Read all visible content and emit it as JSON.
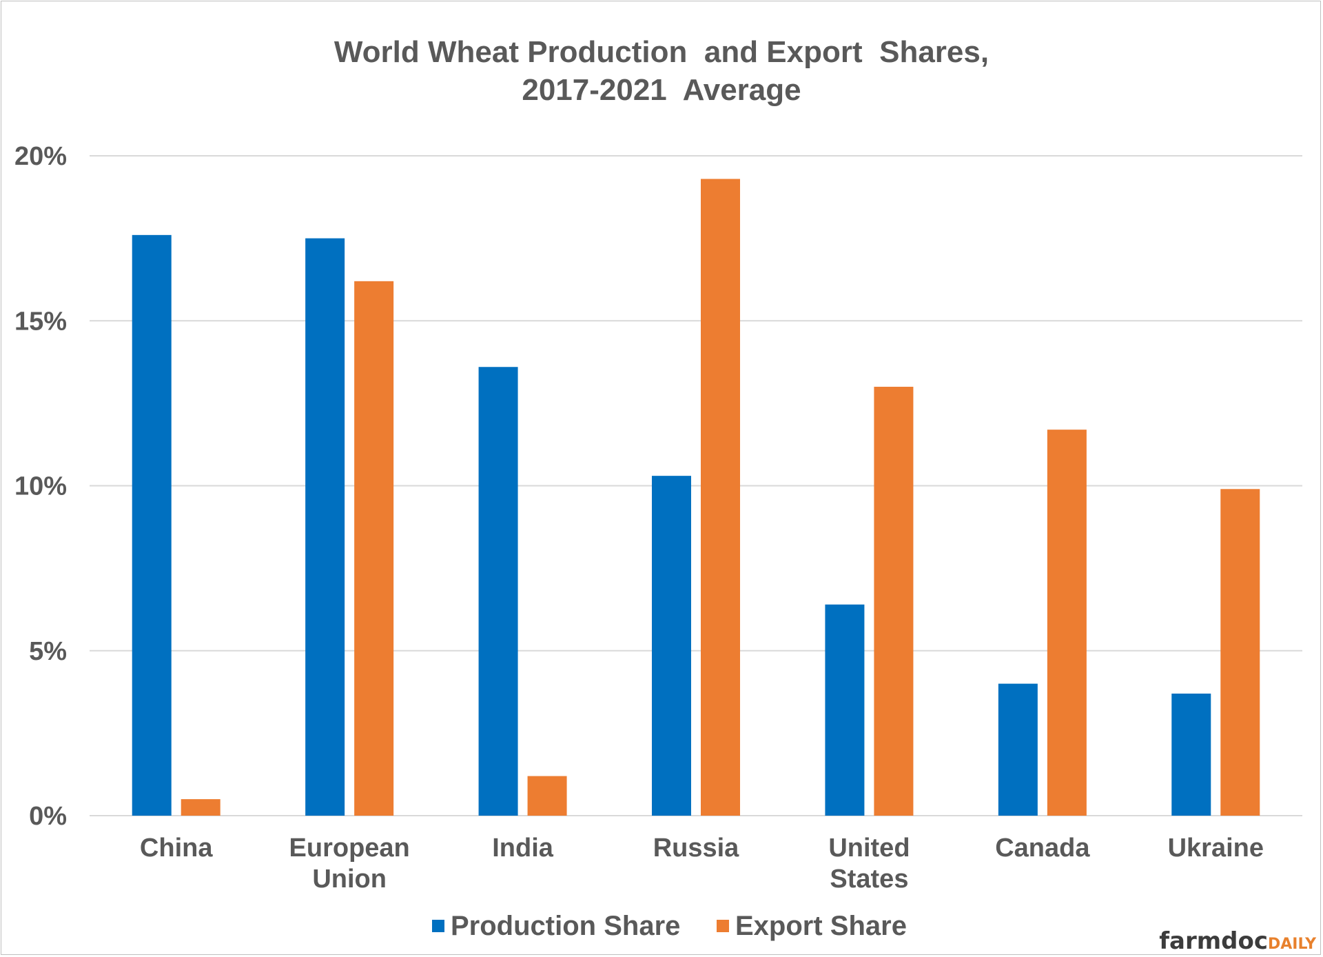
{
  "chart_data": {
    "type": "bar",
    "title": [
      "World Wheat Production  and Export  Shares,",
      "2017-2021  Average"
    ],
    "categories": [
      [
        "China"
      ],
      [
        "European",
        "Union"
      ],
      [
        "India"
      ],
      [
        "Russia"
      ],
      [
        "United",
        "States"
      ],
      [
        "Canada"
      ],
      [
        "Ukraine"
      ]
    ],
    "series": [
      {
        "name": "Production Share",
        "color": "#0070c0",
        "values": [
          17.6,
          17.5,
          13.6,
          10.3,
          6.4,
          4.0,
          3.7
        ]
      },
      {
        "name": "Export Share",
        "color": "#ed7d31",
        "values": [
          0.5,
          16.2,
          1.2,
          19.3,
          13.0,
          11.7,
          9.9
        ]
      }
    ],
    "yticks": [
      {
        "value": 0,
        "label": "0%"
      },
      {
        "value": 5,
        "label": "5%"
      },
      {
        "value": 10,
        "label": "10%"
      },
      {
        "value": 15,
        "label": "15%"
      },
      {
        "value": 20,
        "label": "20%"
      }
    ],
    "ylim": [
      0,
      20
    ],
    "grid": true,
    "legend_position": "bottom",
    "xlabel": "",
    "ylabel": ""
  },
  "brand": {
    "part1": "farmdoc",
    "part2": "DAILY"
  }
}
